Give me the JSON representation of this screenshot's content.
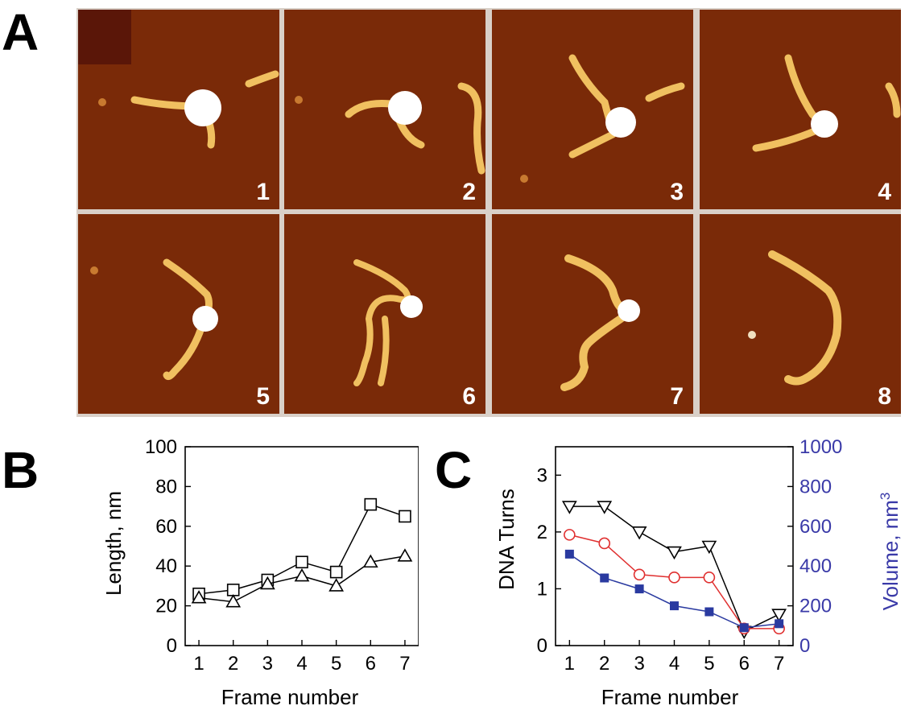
{
  "panel_labels": {
    "a": "A",
    "b": "B",
    "c": "C"
  },
  "afm_frames": [
    {
      "number": "1"
    },
    {
      "number": "2"
    },
    {
      "number": "3"
    },
    {
      "number": "4"
    },
    {
      "number": "5"
    },
    {
      "number": "6"
    },
    {
      "number": "7"
    },
    {
      "number": "8"
    }
  ],
  "colors": {
    "afm_background": "#7a2a08",
    "afm_strand": "#f0c060",
    "afm_core": "#ffffff",
    "red_series": "#e03030",
    "blue_series": "#2a3aa0",
    "right_axis": "#3a3aa8"
  },
  "chart_data": [
    {
      "id": "B",
      "type": "line",
      "x": [
        1,
        2,
        3,
        4,
        5,
        6,
        7
      ],
      "xticks": [
        "1",
        "2",
        "3",
        "4",
        "5",
        "6",
        "7"
      ],
      "xlabel": "Frame number",
      "ylabel": "Length, nm",
      "ylim": [
        0,
        100
      ],
      "yticks": [
        "0",
        "20",
        "40",
        "60",
        "80",
        "100"
      ],
      "series": [
        {
          "name": "squares",
          "marker": "square-open",
          "values": [
            26,
            28,
            33,
            42,
            37,
            71,
            65
          ]
        },
        {
          "name": "triangles",
          "marker": "triangle-open",
          "values": [
            24,
            22,
            31,
            35,
            30,
            42,
            45
          ]
        }
      ]
    },
    {
      "id": "C",
      "type": "line",
      "x": [
        1,
        2,
        3,
        4,
        5,
        6,
        7
      ],
      "xticks": [
        "1",
        "2",
        "3",
        "4",
        "5",
        "6",
        "7"
      ],
      "xlabel": "Frame number",
      "ylabel": "DNA Turns",
      "ylim": [
        0,
        3.5
      ],
      "yticks": [
        "0",
        "1",
        "2",
        "3"
      ],
      "y2label": "Volume, nm",
      "y2label_sup": "3",
      "y2lim": [
        0,
        1000
      ],
      "y2ticks": [
        "0",
        "200",
        "400",
        "600",
        "800",
        "1000"
      ],
      "series": [
        {
          "name": "down-triangles",
          "marker": "triangle-down-open",
          "color": "#000000",
          "axis": "left",
          "values": [
            2.45,
            2.45,
            2.0,
            1.65,
            1.75,
            0.25,
            0.55
          ]
        },
        {
          "name": "circles",
          "marker": "circle-open",
          "color": "#e03030",
          "axis": "left",
          "values": [
            1.95,
            1.8,
            1.25,
            1.2,
            1.2,
            0.3,
            0.3
          ]
        },
        {
          "name": "filled-squares",
          "marker": "square-filled",
          "color": "#2a3aa0",
          "axis": "right",
          "values": [
            460,
            340,
            285,
            200,
            170,
            90,
            110
          ]
        }
      ]
    }
  ]
}
